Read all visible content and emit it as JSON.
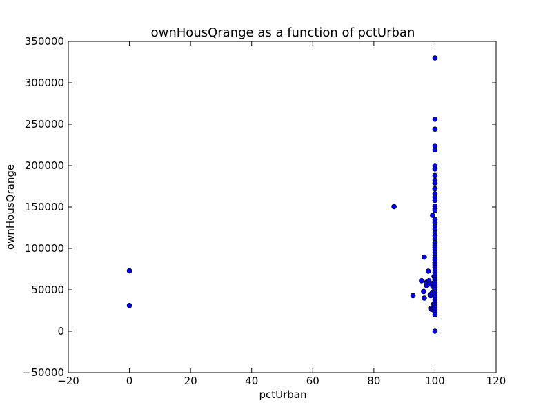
{
  "chart_data": {
    "type": "scatter",
    "title": "ownHousQrange as a function of pctUrban",
    "xlabel": "pctUrban",
    "ylabel": "ownHousQrange",
    "xlim": [
      -20,
      120
    ],
    "ylim": [
      -50000,
      350000
    ],
    "xticks": [
      -20,
      0,
      20,
      40,
      60,
      80,
      100,
      120
    ],
    "yticks": [
      -50000,
      0,
      50000,
      100000,
      150000,
      200000,
      250000,
      300000,
      350000
    ],
    "xtick_labels": [
      "−20",
      "0",
      "20",
      "40",
      "60",
      "80",
      "100",
      "120"
    ],
    "ytick_labels": [
      "−50000",
      "0",
      "50000",
      "100000",
      "150000",
      "200000",
      "250000",
      "300000",
      "350000"
    ],
    "grid": false,
    "marker_color": "#0000ff",
    "marker_edge_color": "#000000",
    "series": [
      {
        "points": [
          [
            0,
            73000
          ],
          [
            0,
            31000
          ],
          [
            86.6,
            150500
          ],
          [
            92.8,
            43000
          ],
          [
            95.6,
            61000
          ],
          [
            96.3,
            48000
          ],
          [
            96.5,
            89500
          ],
          [
            96.5,
            40000
          ],
          [
            97.2,
            59000
          ],
          [
            97.3,
            55000
          ],
          [
            97.8,
            72500
          ],
          [
            98.0,
            61000
          ],
          [
            98.1,
            57000
          ],
          [
            98.4,
            44000
          ],
          [
            98.6,
            43000
          ],
          [
            98.8,
            28000
          ],
          [
            98.9,
            26500
          ],
          [
            99.0,
            46000
          ],
          [
            99.2,
            140000
          ],
          [
            99.3,
            54000
          ],
          [
            99.4,
            58000
          ],
          [
            99.5,
            26000
          ],
          [
            99.6,
            33000
          ],
          [
            99.7,
            66000
          ],
          [
            99.8,
            49000
          ],
          [
            100,
            330000
          ],
          [
            100,
            256000
          ],
          [
            100,
            244000
          ],
          [
            100,
            224000
          ],
          [
            100,
            219000
          ],
          [
            100,
            200000
          ],
          [
            100,
            196000
          ],
          [
            100,
            188000
          ],
          [
            100,
            182000
          ],
          [
            100,
            179000
          ],
          [
            100,
            172000
          ],
          [
            100,
            166000
          ],
          [
            100,
            162000
          ],
          [
            100,
            158000
          ],
          [
            100,
            151000
          ],
          [
            100,
            148000
          ],
          [
            100,
            146000
          ],
          [
            100,
            135000
          ],
          [
            100,
            131000
          ],
          [
            100,
            127000
          ],
          [
            100,
            123000
          ],
          [
            100,
            119000
          ],
          [
            100,
            115000
          ],
          [
            100,
            111000
          ],
          [
            100,
            107000
          ],
          [
            100,
            104000
          ],
          [
            100,
            101000
          ],
          [
            100,
            98000
          ],
          [
            100,
            95000
          ],
          [
            100,
            92000
          ],
          [
            100,
            89000
          ],
          [
            100,
            86000
          ],
          [
            100,
            83000
          ],
          [
            100,
            80000
          ],
          [
            100,
            77000
          ],
          [
            100,
            74000
          ],
          [
            100,
            71000
          ],
          [
            100,
            68000
          ],
          [
            100,
            65000
          ],
          [
            100,
            62000
          ],
          [
            100,
            59000
          ],
          [
            100,
            56000
          ],
          [
            100,
            53000
          ],
          [
            100,
            50000
          ],
          [
            100,
            47000
          ],
          [
            100,
            44000
          ],
          [
            100,
            41000
          ],
          [
            100,
            38000
          ],
          [
            100,
            35000
          ],
          [
            100,
            32000
          ],
          [
            100,
            29000
          ],
          [
            100,
            26000
          ],
          [
            100,
            23000
          ],
          [
            100,
            20000
          ],
          [
            100,
            0
          ]
        ]
      }
    ]
  }
}
